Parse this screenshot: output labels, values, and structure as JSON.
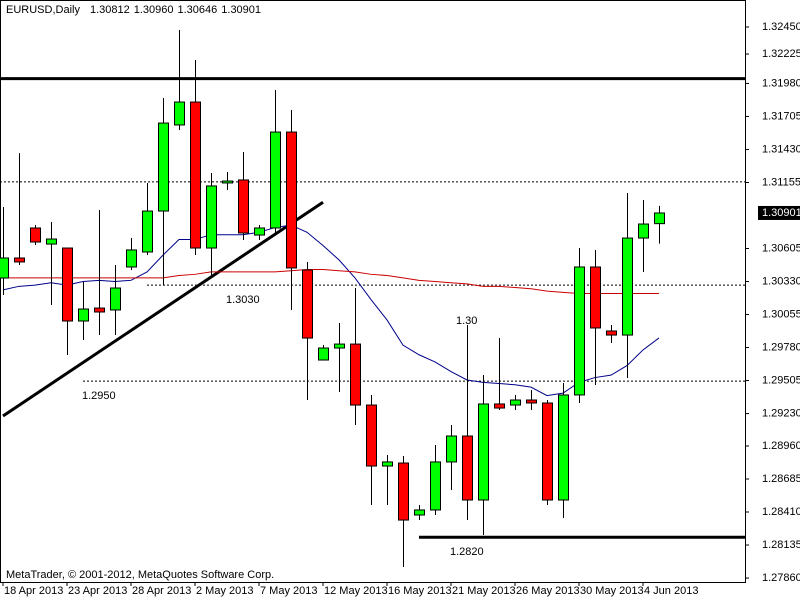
{
  "chart_data": {
    "type": "candlestick",
    "title": "EURUSD,Daily",
    "title_values": [
      "1.30812",
      "1.30960",
      "1.30646",
      "1.30901"
    ],
    "footer": "MetaTrader, © 2001-2012, MetaQuotes Software Corp.",
    "categories": [
      "18 Apr 2013",
      null,
      null,
      null,
      "23 Apr 2013",
      null,
      null,
      null,
      "28 Apr 2013",
      null,
      null,
      null,
      "2 May 2013",
      null,
      null,
      null,
      "7 May 2013",
      null,
      null,
      null,
      "12 May 2013",
      null,
      null,
      null,
      "16 May 2013",
      null,
      null,
      null,
      "21 May 2013",
      null,
      null,
      null,
      "26 May 2013",
      null,
      null,
      null,
      "30 May 2013",
      null,
      null,
      null,
      "4 Jun 2013",
      null
    ],
    "open": [
      1.30359,
      1.30526,
      1.30776,
      1.30642,
      1.30609,
      1.30001,
      1.30109,
      1.30093,
      1.30451,
      1.30576,
      1.30917,
      1.31634,
      1.31825,
      1.30609,
      1.31151,
      1.31176,
      1.30717,
      1.30776,
      1.31575,
      1.30426,
      1.29676,
      1.29776,
      1.29809,
      1.29301,
      1.28793,
      1.28818,
      1.28385,
      1.28427,
      1.28827,
      1.29043,
      1.2851,
      1.2931,
      1.29301,
      1.29343,
      1.29318,
      1.2851,
      1.29385,
      1.30451,
      1.29918,
      1.29884,
      1.30692,
      1.30812
    ],
    "high": [
      1.30951,
      1.314,
      1.30801,
      1.30826,
      1.30609,
      1.30326,
      1.30926,
      1.30468,
      1.30692,
      1.31151,
      1.31859,
      1.32425,
      1.32175,
      1.31234,
      1.31242,
      1.31409,
      1.30801,
      1.31925,
      1.31759,
      1.30493,
      1.29801,
      1.29984,
      1.30276,
      1.29385,
      1.28885,
      1.28877,
      1.28468,
      1.28968,
      1.29135,
      1.29968,
      1.29551,
      1.29859,
      1.29385,
      1.29426,
      1.29343,
      1.29485,
      1.30609,
      1.30593,
      1.29968,
      1.31067,
      1.31009,
      1.3096
    ],
    "low": [
      1.30218,
      1.30468,
      1.30634,
      1.30134,
      1.29718,
      1.29843,
      1.29884,
      1.29884,
      1.30426,
      1.30551,
      1.30301,
      1.31592,
      1.30551,
      1.30359,
      1.31092,
      1.30676,
      1.30676,
      1.30734,
      1.30093,
      1.29343,
      1.29676,
      1.2941,
      1.29135,
      1.28468,
      1.28468,
      1.27952,
      1.28343,
      1.28385,
      1.28593,
      1.28343,
      1.28218,
      1.2926,
      1.2926,
      1.2926,
      1.28468,
      1.2836,
      1.29318,
      1.29468,
      1.29818,
      1.29526,
      1.30409,
      1.30646
    ],
    "close": [
      1.30526,
      1.30493,
      1.30659,
      1.30684,
      1.30001,
      1.30101,
      1.30076,
      1.30276,
      1.30593,
      1.30917,
      1.3165,
      1.31825,
      1.30609,
      1.31126,
      1.31167,
      1.30734,
      1.30776,
      1.31575,
      1.30443,
      1.29859,
      1.29776,
      1.29809,
      1.29301,
      1.28793,
      1.28827,
      1.28343,
      1.28427,
      1.28827,
      1.29043,
      1.2851,
      1.2931,
      1.29276,
      1.29343,
      1.29318,
      1.2851,
      1.29385,
      1.30451,
      1.29943,
      1.29884,
      1.30692,
      1.30809,
      1.30901
    ],
    "up_color": "#00ff00",
    "down_color": "#ff0000",
    "ylim": [
      1.27827,
      1.32675
    ],
    "yticks": [
      {
        "value": 1.3245,
        "label": "1.32450"
      },
      1.32225,
      {
        "value": 1.3198,
        "label": "1.31980"
      },
      1.31705,
      {
        "value": 1.3143,
        "label": "1.31430"
      },
      1.31155,
      1.30605,
      {
        "value": 1.3033,
        "label": "1.30330"
      },
      1.30055,
      {
        "value": 1.2978,
        "label": "1.29780"
      },
      1.29505,
      {
        "value": 1.2923,
        "label": "1.29230"
      },
      {
        "value": 1.2896,
        "label": "1.28960"
      },
      1.28685,
      {
        "value": 1.2841,
        "label": "1.28410"
      },
      1.28135,
      {
        "value": 1.2786,
        "label": "1.27860"
      }
    ],
    "last_price": {
      "value": 1.30901,
      "label": "1.30901"
    },
    "overlays": [
      {
        "color": "#00008b",
        "values": [
          1.3026,
          1.3029,
          1.303,
          1.3032,
          1.303,
          1.3033,
          1.3034,
          1.3033,
          1.3034,
          1.3041,
          1.3055,
          1.3068,
          1.3068,
          1.3072,
          1.3072,
          1.3072,
          1.3074,
          1.3078,
          1.308,
          1.3074,
          1.3063,
          1.3051,
          1.3036,
          1.3018,
          1.3001,
          1.298,
          1.2972,
          1.2966,
          1.2958,
          1.2951,
          1.2949,
          1.2948,
          1.2947,
          1.2945,
          1.2938,
          1.294,
          1.2949,
          1.2953,
          1.2955,
          1.2963,
          1.2976,
          1.2986
        ]
      },
      {
        "color": "#cc0000",
        "values": [
          1.3036,
          1.3036,
          1.3036,
          1.3036,
          1.3036,
          1.3036,
          1.3036,
          1.3036,
          1.3036,
          1.3036,
          1.3036,
          1.3038,
          1.3039,
          1.3041,
          1.3041,
          1.3041,
          1.3041,
          1.3041,
          1.3042,
          1.3043,
          1.3043,
          1.3042,
          1.3041,
          1.3039,
          1.3038,
          1.3036,
          1.3034,
          1.3033,
          1.3032,
          1.3031,
          1.3029,
          1.3029,
          1.3028,
          1.3027,
          1.3025,
          1.3024,
          1.3023,
          1.3023,
          1.3023,
          1.3023,
          1.3023,
          1.3023
        ]
      }
    ],
    "levels": [
      {
        "value": 1.3202,
        "style": "solid",
        "start": 0
      },
      {
        "value": 1.3116,
        "style": "dotted",
        "start": 0
      },
      {
        "value": 1.303,
        "label": "1.3030",
        "style": "dotted",
        "start": 9
      },
      {
        "value": 1.295,
        "label": "1.2950",
        "style": "dotted",
        "start": 5
      },
      {
        "value": 1.282,
        "label": "1.2820",
        "style": "solid",
        "start": 26
      }
    ],
    "trendlines": [
      {
        "x": [
          0,
          20
        ],
        "y": [
          1.2921,
          1.3099
        ]
      }
    ],
    "annotations": [
      {
        "value": 1.3,
        "label": "1.30"
      }
    ]
  }
}
